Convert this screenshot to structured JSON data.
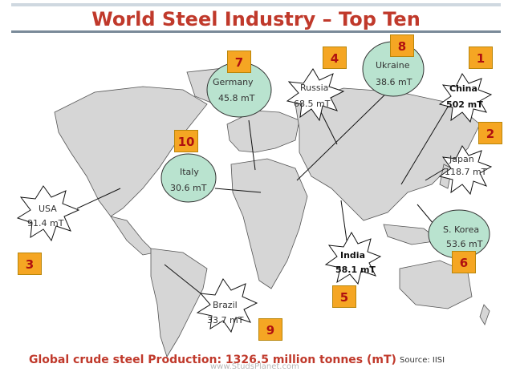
{
  "title": "World Steel Industry – Top Ten",
  "footer": {
    "production": "Global crude steel Production: 1326.5 million tonnes (mT)",
    "source": "Source: IISI",
    "watermark": "www.StudsPlanet.com"
  },
  "colors": {
    "title": "#c0392b",
    "number_box": "#f5a623",
    "number_text": "#b01010",
    "map_land": "#d6d6d6",
    "ellipse_fill": "#b9e3cf"
  },
  "countries": [
    {
      "rank": "1",
      "name": "China",
      "value": "502 mT",
      "bold": true
    },
    {
      "rank": "2",
      "name": "Japan",
      "value": "118.7 mT",
      "bold": false
    },
    {
      "rank": "3",
      "name": "USA",
      "value": "91.4 mT",
      "bold": false
    },
    {
      "rank": "4",
      "name": "Russia",
      "value": "68.5 mT",
      "bold": false
    },
    {
      "rank": "5",
      "name": "India",
      "value": "58.1 mT",
      "bold": true
    },
    {
      "rank": "6",
      "name": "S. Korea",
      "value": "53.6 mT",
      "bold": false
    },
    {
      "rank": "7",
      "name": "Germany",
      "value": "45.8 mT",
      "bold": false
    },
    {
      "rank": "8",
      "name": "Ukraine",
      "value": "38.6 mT",
      "bold": false
    },
    {
      "rank": "9",
      "name": "Brazil",
      "value": "33.7 mT",
      "bold": false
    },
    {
      "rank": "10",
      "name": "Italy",
      "value": "30.6 mT",
      "bold": false
    }
  ]
}
